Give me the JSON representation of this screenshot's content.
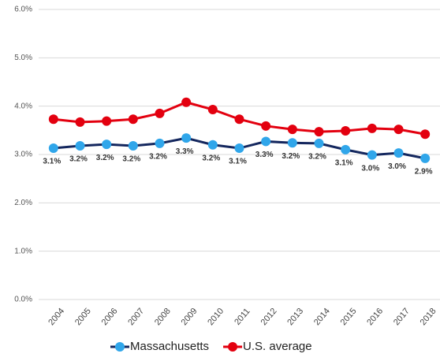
{
  "chart_data": {
    "type": "line",
    "categories": [
      "2004",
      "2005",
      "2006",
      "2007",
      "2008",
      "2009",
      "2010",
      "2011",
      "2012",
      "2013",
      "2014",
      "2015",
      "2016",
      "2017",
      "2018"
    ],
    "series": [
      {
        "name": "Massachusetts",
        "color": "#14275e",
        "marker_color": "#30a6ea",
        "values": [
          3.13,
          3.18,
          3.21,
          3.18,
          3.23,
          3.34,
          3.2,
          3.13,
          3.27,
          3.24,
          3.23,
          3.1,
          2.99,
          3.03,
          2.92
        ],
        "value_labels": [
          "3.1%",
          "3.2%",
          "3.2%",
          "3.2%",
          "3.2%",
          "3.3%",
          "3.2%",
          "3.1%",
          "3.3%",
          "3.2%",
          "3.2%",
          "3.1%",
          "3.0%",
          "3.0%",
          "2.9%"
        ]
      },
      {
        "name": "U.S. average",
        "color": "#e3000f",
        "marker_color": "#e3000f",
        "values": [
          3.73,
          3.67,
          3.69,
          3.73,
          3.85,
          4.08,
          3.93,
          3.73,
          3.59,
          3.52,
          3.47,
          3.49,
          3.54,
          3.52,
          3.42
        ]
      }
    ],
    "ylim": [
      0,
      6
    ],
    "yticks": [
      {
        "value": 0,
        "label": "0.0%"
      },
      {
        "value": 1,
        "label": "1.0%"
      },
      {
        "value": 2,
        "label": "2.0%"
      },
      {
        "value": 3,
        "label": "3.0%"
      },
      {
        "value": 4,
        "label": "4.0%"
      },
      {
        "value": 5,
        "label": "5.0%"
      },
      {
        "value": 6,
        "label": "6.0%"
      }
    ],
    "grid": true,
    "legend": "bottom"
  }
}
